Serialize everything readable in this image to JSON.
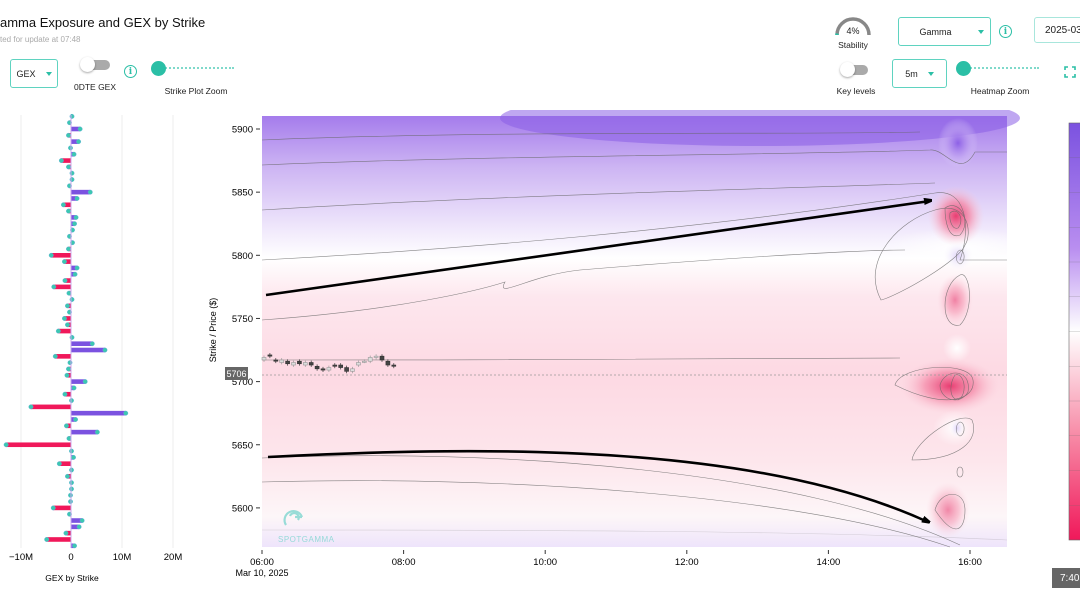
{
  "header": {
    "title": "amma Exposure and GEX by Strike",
    "subtitle": "ted for update at 07:48",
    "stability_value": "4%",
    "stability_label": "Stability",
    "stability_fraction": 0.04,
    "mode_select": "Gamma",
    "date_value": "2025-03"
  },
  "left_controls": {
    "gex_select": "GEX",
    "odte_label": "0DTE GEX",
    "odte_on": false,
    "strike_zoom_label": "Strike Plot Zoom",
    "strike_zoom_level": 0
  },
  "right_controls": {
    "key_levels_label": "Key levels",
    "key_levels_on": false,
    "interval_select": "5m",
    "heatmap_zoom_label": "Heatmap Zoom",
    "heatmap_zoom_level": 0
  },
  "tooltip_time": "7:40",
  "colors": {
    "accent": "#2bbfa6",
    "positive": "#7b52e0",
    "negative": "#f0185a",
    "heat_high": "#7b52e0",
    "heat_low": "#f0185a"
  },
  "icons": [
    "info-icon",
    "chevron-down-icon",
    "fullscreen-icon",
    "spotgamma-logo"
  ],
  "chart_data": [
    {
      "type": "bar",
      "orientation": "horizontal",
      "xlabel": "GEX by Strike",
      "xticks": [
        "−10M",
        "0",
        "10M",
        "20M"
      ],
      "xlim": [
        -12.8,
        20
      ],
      "strikes_desc": {
        "start": 5910,
        "step": -5
      },
      "values": [
        0.2,
        -0.3,
        1.8,
        -0.5,
        1.5,
        -0.1,
        0.6,
        -1.9,
        -0.5,
        0.2,
        0.2,
        -0.3,
        3.8,
        1.2,
        -1.5,
        -0.5,
        1.0,
        0.7,
        0.3,
        -0.3,
        0.3,
        -0.5,
        -3.9,
        -1.3,
        1.2,
        0.8,
        -1.2,
        -3.4,
        -0.4,
        0.2,
        -0.7,
        -0.3,
        -1.3,
        -0.7,
        -2.5,
        0.2,
        4.2,
        6.7,
        -3.1,
        -0.2,
        -0.5,
        -0.8,
        2.8,
        0.6,
        -1.2,
        0.1,
        -7.9,
        10.8,
        0.9,
        -0.9,
        5.2,
        -0.4,
        -12.8,
        0.1,
        0.5,
        -2.3,
        0.1,
        -0.7,
        0.1,
        0.1,
        -0.1,
        -0.1,
        -3.5,
        -0.3,
        2.2,
        1.6,
        -1.0,
        -4.8,
        0.7
      ]
    },
    {
      "type": "heatmap",
      "ylabel": "Strike / Price ($)",
      "yticks": [
        "5900",
        "5850",
        "5800",
        "5750",
        "5700",
        "5650",
        "5600"
      ],
      "xticks": [
        "06:00",
        "08:00",
        "10:00",
        "12:00",
        "14:00",
        "16:00"
      ],
      "x_date_label": "Mar 10, 2025",
      "ylim": [
        5570,
        5910
      ],
      "current_price_label": "5706",
      "current_price": 5706,
      "candles_close": [
        5712,
        5713,
        5709,
        5710,
        5707,
        5708,
        5707,
        5708,
        5706,
        5703,
        5702,
        5704,
        5705,
        5704,
        5701,
        5703,
        5708,
        5709,
        5712,
        5713,
        5710,
        5706,
        5705
      ],
      "candles_open": [
        5710,
        5714,
        5710,
        5708,
        5709,
        5706,
        5709,
        5706,
        5708,
        5705,
        5703,
        5702,
        5706,
        5706,
        5704,
        5701,
        5706,
        5709,
        5709,
        5712,
        5713,
        5709,
        5706
      ]
    }
  ]
}
